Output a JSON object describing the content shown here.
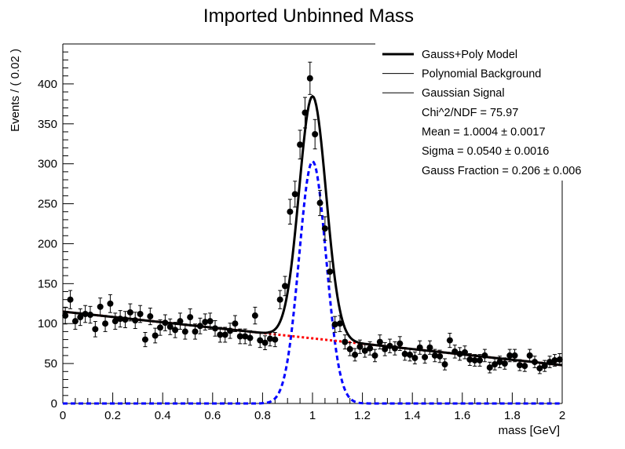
{
  "chart_data": {
    "type": "scatter",
    "title": "Imported Unbinned Mass",
    "xlabel": "mass [GeV]",
    "ylabel": "Events / ( 0.02 )",
    "xlim": [
      0,
      2
    ],
    "ylim": [
      0,
      450
    ],
    "x_ticks": [
      0,
      0.2,
      0.4,
      0.6,
      0.8,
      1,
      1.2,
      1.4,
      1.6,
      1.8,
      2
    ],
    "x_tick_labels": [
      "0",
      "0.2",
      "0.4",
      "0.6",
      "0.8",
      "1",
      "1.2",
      "1.4",
      "1.6",
      "1.8",
      "2"
    ],
    "y_ticks": [
      0,
      50,
      100,
      150,
      200,
      250,
      300,
      350,
      400
    ],
    "y_tick_labels": [
      "0",
      "50",
      "100",
      "150",
      "200",
      "250",
      "300",
      "350",
      "400"
    ],
    "grid": false,
    "legend_position": "top-right",
    "data_points": {
      "x": [
        0.01,
        0.03,
        0.05,
        0.07,
        0.09,
        0.11,
        0.13,
        0.15,
        0.17,
        0.19,
        0.21,
        0.23,
        0.25,
        0.27,
        0.29,
        0.31,
        0.33,
        0.35,
        0.37,
        0.39,
        0.41,
        0.43,
        0.45,
        0.47,
        0.49,
        0.51,
        0.53,
        0.55,
        0.57,
        0.59,
        0.61,
        0.63,
        0.65,
        0.67,
        0.69,
        0.71,
        0.73,
        0.75,
        0.77,
        0.79,
        0.81,
        0.83,
        0.85,
        0.87,
        0.89,
        0.91,
        0.93,
        0.95,
        0.97,
        0.99,
        1.01,
        1.03,
        1.05,
        1.07,
        1.09,
        1.11,
        1.13,
        1.15,
        1.17,
        1.19,
        1.21,
        1.23,
        1.25,
        1.27,
        1.29,
        1.31,
        1.33,
        1.35,
        1.37,
        1.39,
        1.41,
        1.43,
        1.45,
        1.47,
        1.49,
        1.51,
        1.53,
        1.55,
        1.57,
        1.59,
        1.61,
        1.63,
        1.65,
        1.67,
        1.69,
        1.71,
        1.73,
        1.75,
        1.77,
        1.79,
        1.81,
        1.83,
        1.85,
        1.87,
        1.89,
        1.91,
        1.93,
        1.95,
        1.97,
        1.99
      ],
      "y": [
        110,
        130,
        103,
        108,
        112,
        111,
        93,
        121,
        100,
        125,
        103,
        106,
        105,
        114,
        104,
        112,
        80,
        109,
        85,
        95,
        101,
        96,
        92,
        103,
        90,
        108,
        90,
        97,
        102,
        103,
        94,
        86,
        86,
        91,
        100,
        84,
        84,
        82,
        110,
        79,
        76,
        81,
        80,
        130,
        147,
        240,
        262,
        324,
        364,
        407,
        337,
        251,
        219,
        165,
        99,
        100,
        77,
        68,
        61,
        71,
        66,
        69,
        60,
        77,
        68,
        72,
        69,
        75,
        62,
        61,
        57,
        70,
        58,
        70,
        60,
        59,
        49,
        79,
        65,
        62,
        64,
        55,
        54,
        54,
        60,
        45,
        49,
        52,
        50,
        60,
        60,
        48,
        47,
        60,
        52,
        44,
        47,
        52,
        54,
        55
      ],
      "errors": [
        10.5,
        11.4,
        10.1,
        10.4,
        10.6,
        10.5,
        9.6,
        11.0,
        10.0,
        11.2,
        10.1,
        10.3,
        10.2,
        10.7,
        10.2,
        10.6,
        8.9,
        10.4,
        9.2,
        9.7,
        10.0,
        9.8,
        9.6,
        10.1,
        9.5,
        10.4,
        9.5,
        9.8,
        10.1,
        10.1,
        9.7,
        9.3,
        9.3,
        9.5,
        10.0,
        9.2,
        9.2,
        9.1,
        10.5,
        8.9,
        8.7,
        9.0,
        8.9,
        11.4,
        12.1,
        15.5,
        16.2,
        18.0,
        19.1,
        20.2,
        18.4,
        15.8,
        14.8,
        12.8,
        9.9,
        10.0,
        8.8,
        8.2,
        7.8,
        8.4,
        8.1,
        8.3,
        7.7,
        8.8,
        8.2,
        8.5,
        8.3,
        8.7,
        7.9,
        7.8,
        7.5,
        8.4,
        7.6,
        8.4,
        7.7,
        7.7,
        7.0,
        8.9,
        8.1,
        7.9,
        8.0,
        7.4,
        7.3,
        7.3,
        7.7,
        6.7,
        7.0,
        7.2,
        7.1,
        7.7,
        7.7,
        6.9,
        6.9,
        7.7,
        7.2,
        6.6,
        6.9,
        7.2,
        7.3,
        7.4
      ]
    },
    "model": {
      "background_start": 115,
      "background_end": 48,
      "mean": 1.0004,
      "sigma": 0.054,
      "signal_peak": 303
    },
    "series": [
      {
        "name": "Gauss+Poly Model",
        "color": "#000000",
        "style": "solid-thick"
      },
      {
        "name": "Polynomial Background",
        "color": "#ff0000",
        "style": "dotted"
      },
      {
        "name": "Gaussian Signal",
        "color": "#0000ff",
        "style": "dashed"
      }
    ],
    "annotations": [
      "Chi^2/NDF = 75.97",
      "Mean = 1.0004 ± 0.0017",
      "Sigma = 0.0540 ± 0.0016",
      "Gauss Fraction = 0.206 ± 0.006"
    ]
  }
}
